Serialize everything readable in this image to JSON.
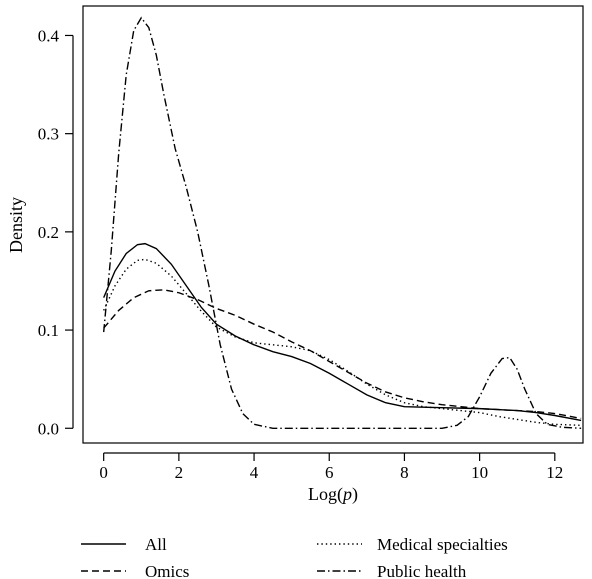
{
  "chart_data": {
    "type": "line",
    "title": "",
    "xlabel_prefix": "Log(",
    "xlabel_var": "p",
    "xlabel_suffix": ")",
    "ylabel": "Density",
    "xlim": [
      -0.55,
      12.75
    ],
    "ylim": [
      -0.015,
      0.43
    ],
    "xticks": [
      0,
      2,
      4,
      6,
      8,
      10,
      12
    ],
    "yticks": [
      0.0,
      0.1,
      0.2,
      0.3,
      0.4
    ],
    "ytick_labels": [
      "0.0",
      "0.1",
      "0.2",
      "0.3",
      "0.4"
    ],
    "grid": false,
    "legend_position": "bottom",
    "series": [
      {
        "name": "All",
        "dash": "solid",
        "points": [
          [
            0.0,
            0.133
          ],
          [
            0.3,
            0.16
          ],
          [
            0.6,
            0.178
          ],
          [
            0.9,
            0.187
          ],
          [
            1.1,
            0.188
          ],
          [
            1.4,
            0.183
          ],
          [
            1.8,
            0.167
          ],
          [
            2.2,
            0.145
          ],
          [
            2.6,
            0.123
          ],
          [
            3.0,
            0.106
          ],
          [
            3.5,
            0.094
          ],
          [
            4.0,
            0.085
          ],
          [
            4.5,
            0.078
          ],
          [
            5.0,
            0.073
          ],
          [
            5.5,
            0.066
          ],
          [
            6.0,
            0.056
          ],
          [
            6.5,
            0.045
          ],
          [
            7.0,
            0.034
          ],
          [
            7.5,
            0.026
          ],
          [
            8.0,
            0.022
          ],
          [
            9.0,
            0.021
          ],
          [
            10.0,
            0.02
          ],
          [
            10.5,
            0.019
          ],
          [
            11.0,
            0.018
          ],
          [
            11.5,
            0.016
          ],
          [
            12.0,
            0.013
          ],
          [
            12.7,
            0.008
          ]
        ]
      },
      {
        "name": "Omics",
        "dash": "dashed",
        "points": [
          [
            0.0,
            0.102
          ],
          [
            0.4,
            0.12
          ],
          [
            0.8,
            0.133
          ],
          [
            1.2,
            0.14
          ],
          [
            1.6,
            0.141
          ],
          [
            2.0,
            0.138
          ],
          [
            2.5,
            0.131
          ],
          [
            3.0,
            0.122
          ],
          [
            3.5,
            0.115
          ],
          [
            4.0,
            0.106
          ],
          [
            4.5,
            0.098
          ],
          [
            5.0,
            0.088
          ],
          [
            5.5,
            0.079
          ],
          [
            6.0,
            0.068
          ],
          [
            6.5,
            0.057
          ],
          [
            7.0,
            0.046
          ],
          [
            7.5,
            0.037
          ],
          [
            8.0,
            0.031
          ],
          [
            8.5,
            0.027
          ],
          [
            9.0,
            0.024
          ],
          [
            9.5,
            0.022
          ],
          [
            10.0,
            0.02
          ],
          [
            10.5,
            0.019
          ],
          [
            11.0,
            0.018
          ],
          [
            11.5,
            0.017
          ],
          [
            12.0,
            0.015
          ],
          [
            12.7,
            0.01
          ]
        ]
      },
      {
        "name": "Medical specialties",
        "dash": "dotted",
        "points": [
          [
            0.0,
            0.12
          ],
          [
            0.3,
            0.145
          ],
          [
            0.6,
            0.162
          ],
          [
            0.9,
            0.171
          ],
          [
            1.1,
            0.172
          ],
          [
            1.4,
            0.168
          ],
          [
            1.8,
            0.155
          ],
          [
            2.2,
            0.137
          ],
          [
            2.6,
            0.119
          ],
          [
            3.0,
            0.103
          ],
          [
            3.5,
            0.093
          ],
          [
            4.0,
            0.087
          ],
          [
            4.5,
            0.085
          ],
          [
            5.0,
            0.083
          ],
          [
            5.5,
            0.079
          ],
          [
            6.0,
            0.07
          ],
          [
            6.5,
            0.058
          ],
          [
            7.0,
            0.045
          ],
          [
            7.5,
            0.034
          ],
          [
            8.0,
            0.026
          ],
          [
            8.5,
            0.022
          ],
          [
            9.0,
            0.02
          ],
          [
            9.5,
            0.018
          ],
          [
            10.0,
            0.016
          ],
          [
            10.5,
            0.012
          ],
          [
            11.0,
            0.009
          ],
          [
            11.5,
            0.006
          ],
          [
            12.0,
            0.004
          ],
          [
            12.7,
            0.003
          ]
        ]
      },
      {
        "name": "Public health",
        "dash": "dotdash",
        "points": [
          [
            0.0,
            0.098
          ],
          [
            0.2,
            0.18
          ],
          [
            0.4,
            0.28
          ],
          [
            0.6,
            0.36
          ],
          [
            0.8,
            0.405
          ],
          [
            1.0,
            0.418
          ],
          [
            1.2,
            0.408
          ],
          [
            1.4,
            0.38
          ],
          [
            1.6,
            0.34
          ],
          [
            1.9,
            0.285
          ],
          [
            2.2,
            0.245
          ],
          [
            2.5,
            0.2
          ],
          [
            2.8,
            0.145
          ],
          [
            3.1,
            0.085
          ],
          [
            3.4,
            0.04
          ],
          [
            3.7,
            0.015
          ],
          [
            4.0,
            0.004
          ],
          [
            4.5,
            0.0
          ],
          [
            6.0,
            0.0
          ],
          [
            8.0,
            0.0
          ],
          [
            9.0,
            0.0
          ],
          [
            9.4,
            0.003
          ],
          [
            9.7,
            0.012
          ],
          [
            10.0,
            0.032
          ],
          [
            10.3,
            0.056
          ],
          [
            10.6,
            0.071
          ],
          [
            10.8,
            0.072
          ],
          [
            11.0,
            0.06
          ],
          [
            11.2,
            0.04
          ],
          [
            11.5,
            0.015
          ],
          [
            11.8,
            0.004
          ],
          [
            12.2,
            0.001
          ],
          [
            12.7,
            0.0
          ]
        ]
      }
    ]
  },
  "legend": [
    {
      "label": "All",
      "dash": "solid"
    },
    {
      "label": "Omics",
      "dash": "dashed"
    },
    {
      "label": "Medical specialties",
      "dash": "dotted"
    },
    {
      "label": "Public health",
      "dash": "dotdash"
    }
  ]
}
